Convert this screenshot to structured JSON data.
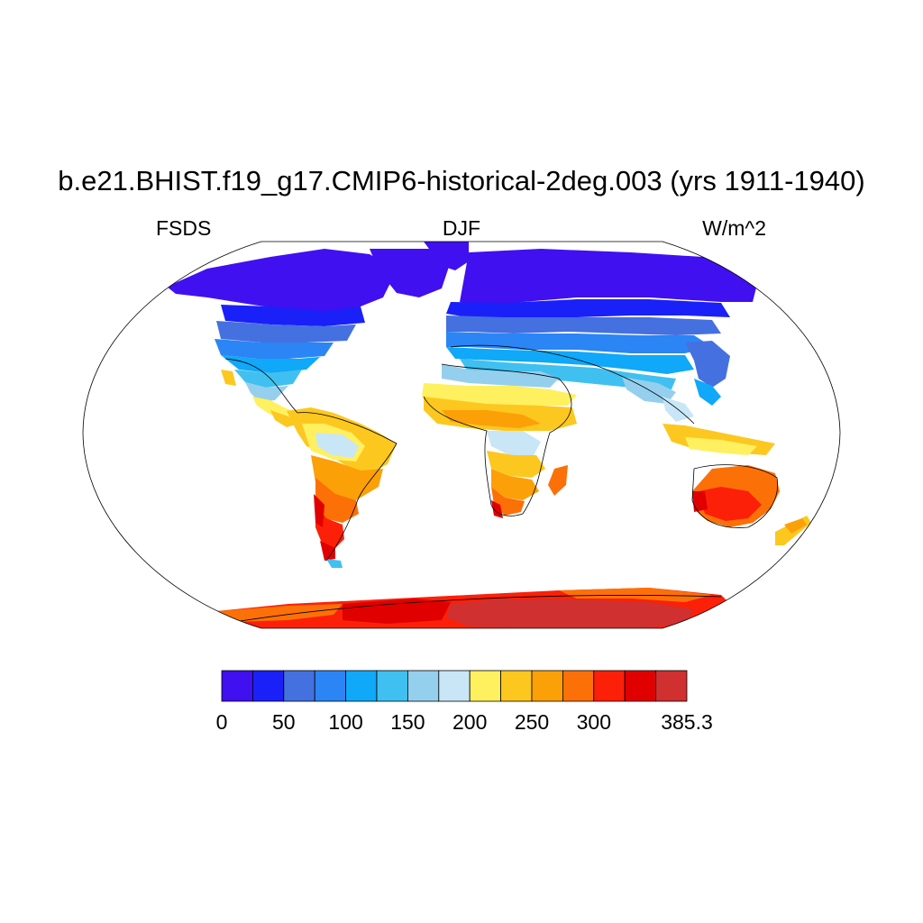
{
  "title": "b.e21.BHIST.f19_g17.CMIP6-historical-2deg.003 (yrs 1911-1940)",
  "left_string": "FSDS",
  "center_string": "DJF",
  "right_string": "W/m^2",
  "colorbar": {
    "colors": [
      "#4010f0",
      "#1a20f8",
      "#4570e0",
      "#2b85f5",
      "#10a8f8",
      "#40c0f0",
      "#95cfee",
      "#c8e6f6",
      "#fff060",
      "#fcc820",
      "#fca008",
      "#fc7008",
      "#fc2008",
      "#e00000",
      "#d03030"
    ],
    "labels": [
      {
        "text": "0",
        "edge": 0
      },
      {
        "text": "50",
        "edge": 2
      },
      {
        "text": "100",
        "edge": 4
      },
      {
        "text": "150",
        "edge": 6
      },
      {
        "text": "200",
        "edge": 8
      },
      {
        "text": "250",
        "edge": 10
      },
      {
        "text": "300",
        "edge": 12
      },
      {
        "text": "385.3",
        "edge": 15
      }
    ]
  },
  "chart_data": {
    "type": "heatmap",
    "title": "b.e21.BHIST.f19_g17.CMIP6-historical-2deg.003 (yrs 1911-1940)",
    "variable": "FSDS",
    "season": "DJF",
    "units": "W/m^2",
    "projection": "Robinson",
    "min": 0,
    "max": 385.3,
    "levels": [
      0,
      25,
      50,
      75,
      100,
      125,
      150,
      175,
      200,
      225,
      250,
      275,
      300,
      325,
      350,
      385.3
    ]
  }
}
